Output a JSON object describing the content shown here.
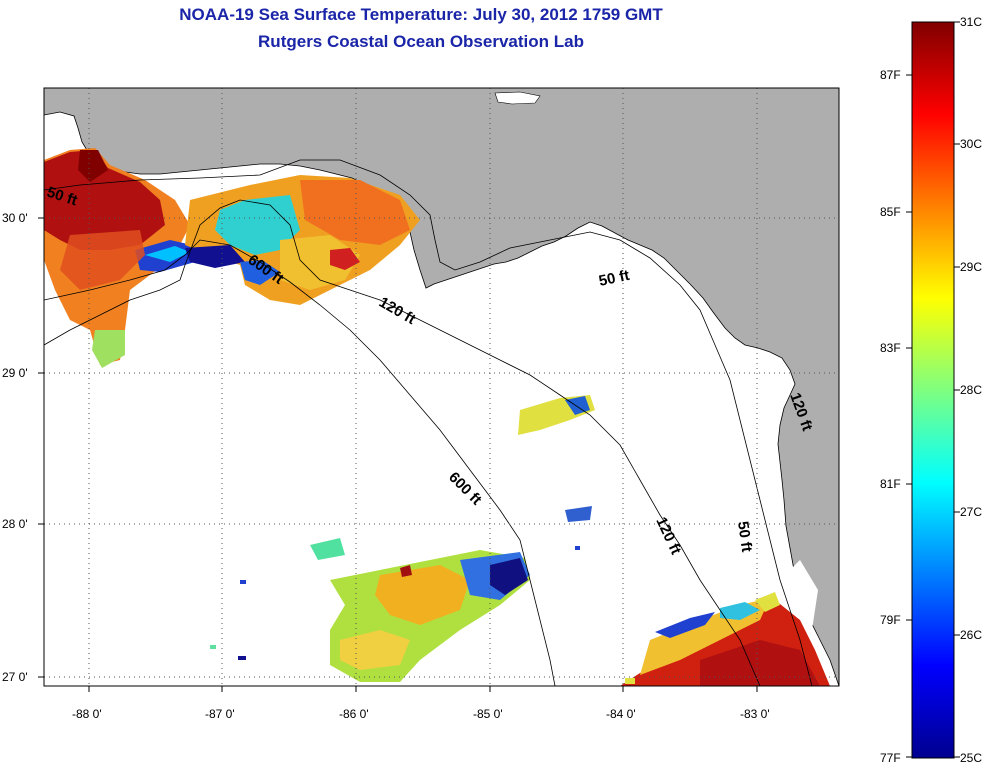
{
  "title": {
    "line1": "NOAA-19 Sea Surface Temperature:  July 30, 2012 1759 GMT",
    "line2": "Rutgers Coastal Ocean Observation Lab"
  },
  "map": {
    "x_ticks": [
      "-88 0'",
      "-87 0'",
      "-86 0'",
      "-85 0'",
      "-84 0'",
      "-83 0'"
    ],
    "y_ticks": [
      "30 0'",
      "29 0'",
      "28 0'",
      "27 0'"
    ],
    "contours": [
      "50 ft",
      "600 ft",
      "120 ft",
      "50 ft",
      "120 ft",
      "600 ft",
      "120 ft",
      "50 ft"
    ],
    "colors": {
      "land": "#aeaeae",
      "ocean": "#ffffff",
      "grid": "#555555"
    }
  },
  "colorbar": {
    "celsius_labels": [
      "31C",
      "30C",
      "29C",
      "28C",
      "27C",
      "26C",
      "25C"
    ],
    "fahrenheit_labels": [
      "87F",
      "85F",
      "83F",
      "81F",
      "79F",
      "77F"
    ]
  }
}
